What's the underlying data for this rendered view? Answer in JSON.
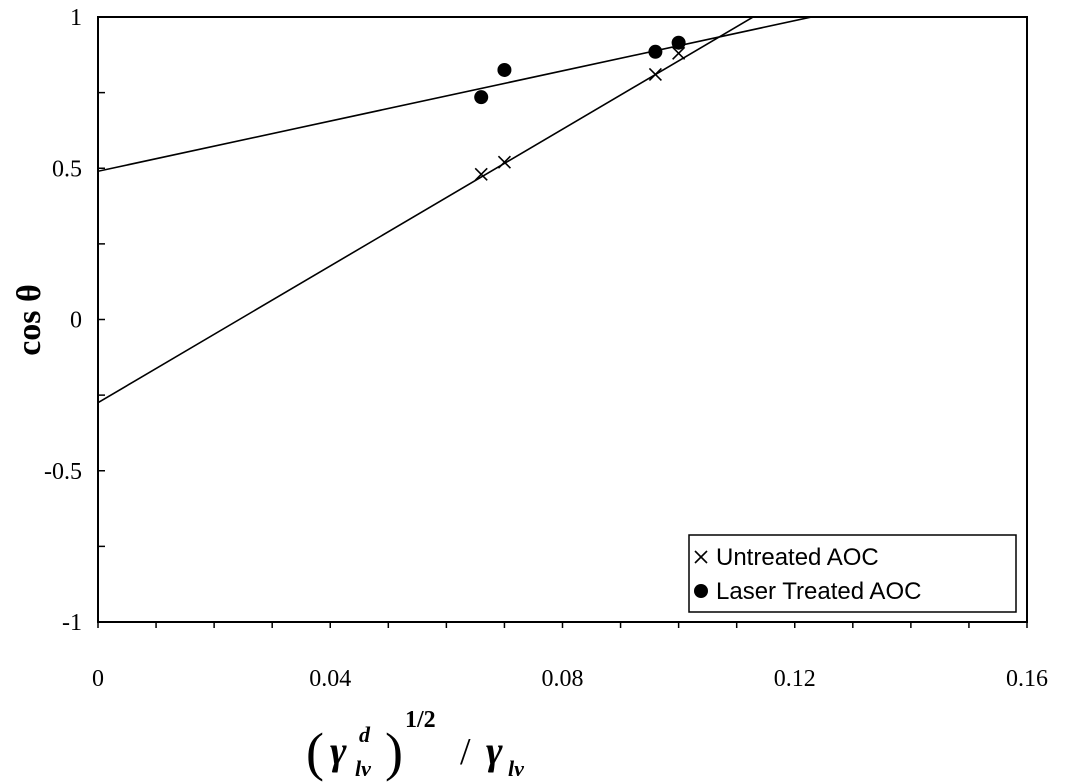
{
  "chart_data": {
    "type": "scatter",
    "xlim": [
      0,
      0.16
    ],
    "ylim": [
      -1,
      1
    ],
    "x_ticks": [
      0,
      0.04,
      0.08,
      0.12,
      0.16
    ],
    "x_tick_labels": [
      "0",
      "0.04",
      "0.08",
      "0.12",
      "0.16"
    ],
    "x_minor_step": 0.01,
    "y_ticks": [
      -1,
      -0.5,
      0,
      0.5,
      1
    ],
    "y_tick_labels": [
      "-1",
      "-0.5",
      "0",
      "0.5",
      "1"
    ],
    "y_minor_step": 0.25,
    "ylabel": "cos θ",
    "xlabel": {
      "gamma": "γ",
      "sup_d": "d",
      "sub_lv": "lv",
      "open": "(",
      "close": ")",
      "exponent": "1/2",
      "slash": "/",
      "gamma2": "γ",
      "sub_lv2": "lv"
    },
    "grid": false,
    "legend_position": "bottom-right",
    "series": [
      {
        "name": "Untreated AOC",
        "marker": "x",
        "points": [
          [
            0.066,
            0.48
          ],
          [
            0.07,
            0.52
          ],
          [
            0.096,
            0.81
          ],
          [
            0.1,
            0.88
          ]
        ],
        "fit": {
          "intercept": -0.275,
          "slope": 11.3
        }
      },
      {
        "name": "Laser Treated AOC",
        "marker": "circle",
        "points": [
          [
            0.066,
            0.735
          ],
          [
            0.07,
            0.825
          ],
          [
            0.096,
            0.885
          ],
          [
            0.1,
            0.915
          ]
        ],
        "fit": {
          "intercept": 0.49,
          "slope": 4.15
        }
      }
    ]
  }
}
